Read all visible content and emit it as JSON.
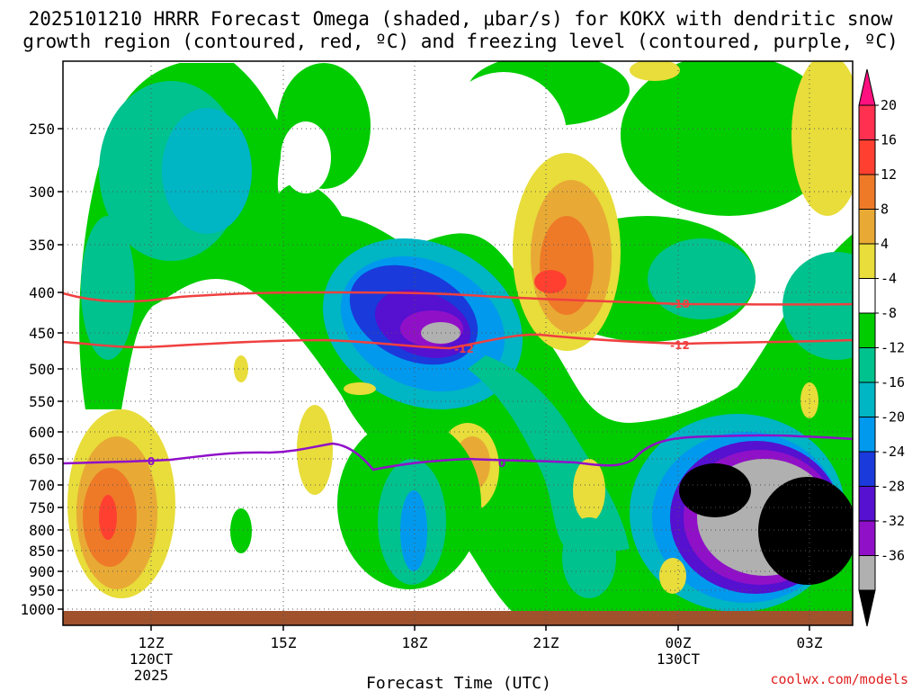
{
  "chart_data": {
    "type": "heatmap",
    "title_line1": "2025101210 HRRR Forecast Omega (shaded, μbar/s) for KOKX with dendritic snow",
    "title_line2": "growth region (contoured, red, ºC) and freezing level (contoured, purple, ºC)",
    "xlabel": "Forecast Time (UTC)",
    "credit": "coolwx.com/models",
    "y_ticks": [
      "250",
      "300",
      "350",
      "400",
      "450",
      "500",
      "550",
      "600",
      "650",
      "700",
      "750",
      "800",
      "850",
      "900",
      "950",
      "1000"
    ],
    "x_ticks": [
      {
        "label": "12Z",
        "sub1": "120CT",
        "sub2": "2025"
      },
      {
        "label": "15Z",
        "sub1": "",
        "sub2": ""
      },
      {
        "label": "18Z",
        "sub1": "",
        "sub2": ""
      },
      {
        "label": "21Z",
        "sub1": "",
        "sub2": ""
      },
      {
        "label": "00Z",
        "sub1": "130CT",
        "sub2": ""
      },
      {
        "label": "03Z",
        "sub1": "",
        "sub2": ""
      }
    ],
    "colorbar_labels": [
      "20",
      "16",
      "12",
      "8",
      "4",
      "-4",
      "-8",
      "-12",
      "-16",
      "-20",
      "-24",
      "-28",
      "-32",
      "-36"
    ],
    "colorbar_colors": [
      "#ff3050",
      "#ff4030",
      "#ee7a28",
      "#e8aa35",
      "#e8dd3a",
      "#ffffff",
      "#00cc00",
      "#00c28e",
      "#00b5c4",
      "#0099ee",
      "#1a3adb",
      "#5510d0",
      "#9010c8",
      "#b0b0b0",
      "#000000"
    ],
    "contour_labels": {
      "dgz_upper": "-18",
      "dgz_lower": "-12",
      "freezing": "0"
    },
    "colors": {
      "dgz": "#f04040",
      "freezing": "#9010c8",
      "ground": "#a0522d"
    }
  }
}
